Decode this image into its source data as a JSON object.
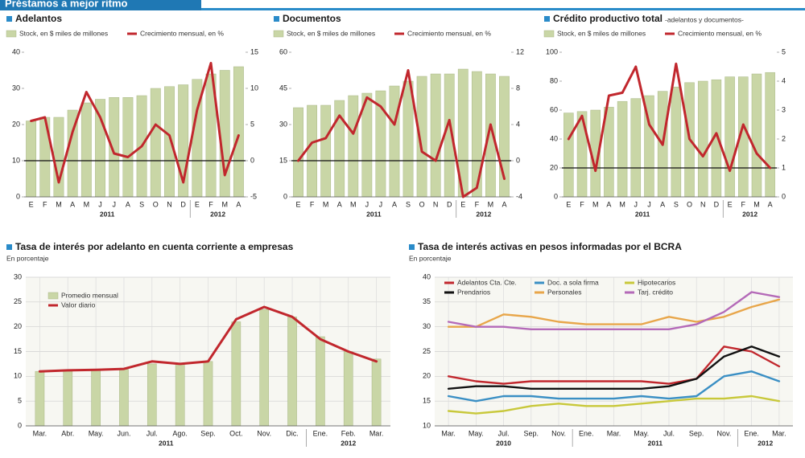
{
  "header": {
    "title": "Préstamos a mejor ritmo"
  },
  "chart_data": [
    {
      "type": "combo",
      "title": "Adelantos",
      "categories": [
        "E",
        "F",
        "M",
        "A",
        "M",
        "J",
        "J",
        "A",
        "S",
        "O",
        "N",
        "D",
        "E",
        "F",
        "M",
        "A"
      ],
      "groups": [
        {
          "label": "2011",
          "count": 12
        },
        {
          "label": "2012",
          "count": 4
        }
      ],
      "ylim": [
        0,
        40
      ],
      "yticks": [
        0,
        10,
        20,
        30,
        40
      ],
      "y2lim": [
        -5,
        15
      ],
      "y2ticks": [
        -5,
        0,
        5,
        10,
        15
      ],
      "reference_line": 0,
      "series": [
        {
          "name": "Stock, en $ miles de millones",
          "kind": "bar",
          "color": "#c9d6a6",
          "values": [
            21,
            22,
            22,
            24,
            26,
            27,
            27.5,
            27.5,
            28,
            30,
            30.5,
            31,
            32.5,
            34,
            35,
            36
          ]
        },
        {
          "name": "Crecimiento mensual, en %",
          "kind": "line",
          "axis": "y2",
          "color": "#c1272d",
          "values": [
            5.5,
            6,
            -3,
            4,
            9.5,
            6,
            1,
            0.5,
            2,
            5,
            3.5,
            -3,
            7,
            13.5,
            -2,
            3.5
          ]
        }
      ]
    },
    {
      "type": "combo",
      "title": "Documentos",
      "categories": [
        "E",
        "F",
        "M",
        "A",
        "M",
        "J",
        "J",
        "A",
        "S",
        "O",
        "N",
        "D",
        "E",
        "F",
        "M",
        "A"
      ],
      "groups": [
        {
          "label": "2011",
          "count": 12
        },
        {
          "label": "2012",
          "count": 4
        }
      ],
      "ylim": [
        0,
        60
      ],
      "yticks": [
        0,
        15,
        30,
        45,
        60
      ],
      "y2lim": [
        -4,
        12
      ],
      "y2ticks": [
        -4,
        0,
        4,
        8,
        12
      ],
      "reference_line": 0,
      "series": [
        {
          "name": "Stock, en $ miles de millones",
          "kind": "bar",
          "color": "#c9d6a6",
          "values": [
            37,
            38,
            38,
            40,
            42,
            43,
            44,
            46,
            48,
            50,
            51,
            51,
            53,
            52,
            51,
            50
          ]
        },
        {
          "name": "Crecimiento mensual, en %",
          "kind": "line",
          "axis": "y2",
          "color": "#c1272d",
          "values": [
            0,
            2,
            2.5,
            5,
            3,
            7,
            6,
            4,
            10,
            1,
            0,
            4.5,
            -4,
            -3,
            4,
            -2
          ]
        }
      ]
    },
    {
      "type": "combo",
      "title": "Crédito productivo total",
      "subtitle": "-adelantos y documentos-",
      "categories": [
        "E",
        "F",
        "M",
        "A",
        "M",
        "J",
        "J",
        "A",
        "S",
        "O",
        "N",
        "D",
        "E",
        "F",
        "M",
        "A"
      ],
      "groups": [
        {
          "label": "2011",
          "count": 12
        },
        {
          "label": "2012",
          "count": 4
        }
      ],
      "ylim": [
        0,
        100
      ],
      "yticks": [
        0,
        20,
        40,
        60,
        80,
        100
      ],
      "y2lim": [
        0,
        5
      ],
      "y2ticks": [
        0,
        1,
        2,
        3,
        4,
        5
      ],
      "reference_line": 1,
      "series": [
        {
          "name": "Stock, en $ miles de millones",
          "kind": "bar",
          "color": "#c9d6a6",
          "values": [
            58,
            59,
            60,
            62,
            66,
            68,
            70,
            73,
            76,
            79,
            80,
            81,
            83,
            83,
            85,
            86
          ]
        },
        {
          "name": "Crecimiento mensual, en %",
          "kind": "line",
          "axis": "y2",
          "color": "#c1272d",
          "values": [
            2,
            2.8,
            0.9,
            3.5,
            3.6,
            4.5,
            2.5,
            1.8,
            4.6,
            2,
            1.4,
            2.2,
            0.9,
            2.5,
            1.5,
            1
          ]
        }
      ]
    },
    {
      "type": "combo",
      "title": "Tasa de interés por adelanto en cuenta corriente a empresas",
      "subtitle": "En porcentaje",
      "categories": [
        "Mar.",
        "Abr.",
        "May.",
        "Jun.",
        "Jul.",
        "Ago.",
        "Sep.",
        "Oct.",
        "Nov.",
        "Dic.",
        "Ene.",
        "Feb.",
        "Mar."
      ],
      "groups": [
        {
          "label": "2011",
          "count": 10
        },
        {
          "label": "2012",
          "count": 3
        }
      ],
      "ylim": [
        0,
        30
      ],
      "yticks": [
        0,
        5,
        10,
        15,
        20,
        25,
        30
      ],
      "grid": true,
      "series": [
        {
          "name": "Promedio mensual",
          "kind": "bar",
          "color": "#c9d6a6",
          "values": [
            11,
            11,
            11.2,
            11.4,
            12.5,
            12.6,
            13,
            21,
            23.5,
            22,
            18,
            15,
            13.5
          ]
        },
        {
          "name": "Valor diario",
          "kind": "line",
          "color": "#c1272d",
          "values": [
            11,
            11.2,
            11.3,
            11.5,
            13,
            12.5,
            13,
            21.5,
            24,
            22,
            17.5,
            15,
            13
          ]
        }
      ]
    },
    {
      "type": "line",
      "title": "Tasa de interés activas en pesos informadas por el BCRA",
      "subtitle": "En porcentaje",
      "categories": [
        "Mar.",
        "May.",
        "Jul.",
        "Sep.",
        "Nov.",
        "Ene.",
        "Mar.",
        "May.",
        "Jul.",
        "Sep.",
        "Nov.",
        "Ene.",
        "Mar."
      ],
      "groups": [
        {
          "label": "2010",
          "count": 5
        },
        {
          "label": "2011",
          "count": 6
        },
        {
          "label": "2012",
          "count": 2
        }
      ],
      "ylim": [
        10,
        40
      ],
      "yticks": [
        10,
        15,
        20,
        25,
        30,
        35,
        40
      ],
      "grid": true,
      "series": [
        {
          "name": "Adelantos Cta. Cte.",
          "kind": "line",
          "color": "#c1272d",
          "values": [
            20,
            19,
            18.5,
            19,
            19,
            19,
            19,
            19,
            18.5,
            19.5,
            26,
            25,
            22
          ]
        },
        {
          "name": "Doc. a sola firma",
          "kind": "line",
          "color": "#3a8fc4",
          "values": [
            16,
            15,
            16,
            16,
            15.5,
            15.5,
            15.5,
            16,
            15.5,
            16,
            20,
            21,
            19
          ]
        },
        {
          "name": "Hipotecarios",
          "kind": "line",
          "color": "#c8c83a",
          "values": [
            13,
            12.5,
            13,
            14,
            14.5,
            14,
            14,
            14.5,
            15,
            15.5,
            15.5,
            16,
            15
          ]
        },
        {
          "name": "Prendarios",
          "kind": "line",
          "color": "#111111",
          "values": [
            17.5,
            18,
            18,
            17.5,
            17.5,
            17.5,
            17.5,
            17.5,
            18,
            19.5,
            24,
            26,
            24
          ]
        },
        {
          "name": "Personales",
          "kind": "line",
          "color": "#e8a64a",
          "values": [
            30,
            30,
            32.5,
            32,
            31,
            30.5,
            30.5,
            30.5,
            32,
            31,
            32,
            34,
            35.5
          ]
        },
        {
          "name": "Tarj. crédito",
          "kind": "line",
          "color": "#b46ab8",
          "values": [
            31,
            30,
            30,
            29.5,
            29.5,
            29.5,
            29.5,
            29.5,
            29.5,
            30.5,
            33,
            37,
            36
          ]
        }
      ]
    }
  ]
}
